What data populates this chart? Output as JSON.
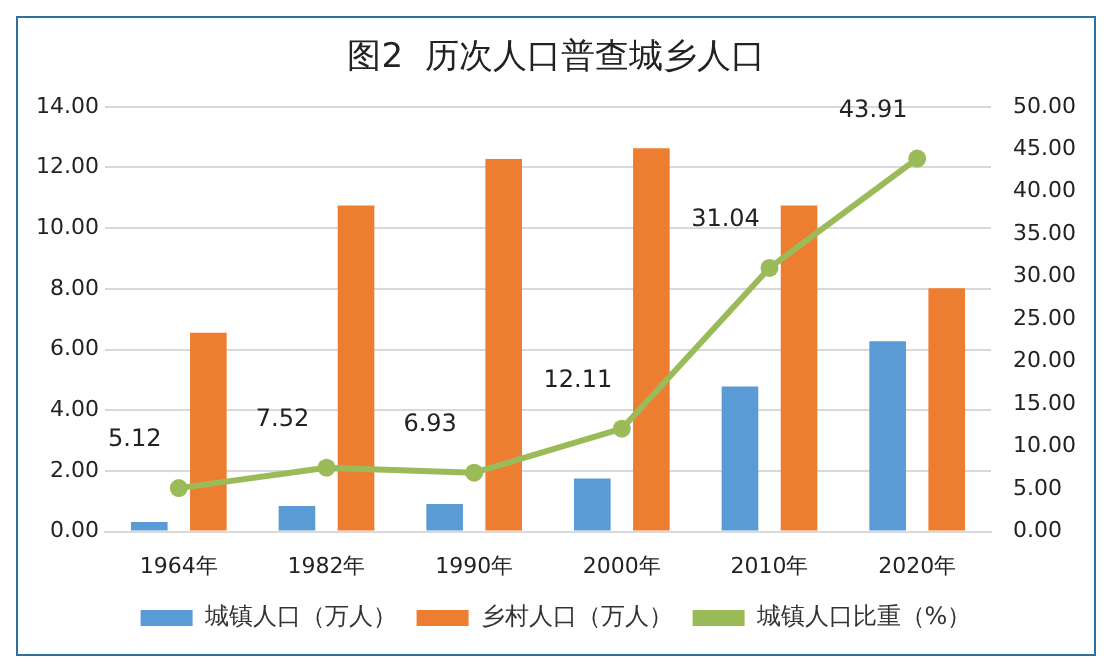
{
  "chart_data": {
    "type": "bar",
    "title": "图2  历次人口普查城乡人口",
    "categories": [
      "1964年",
      "1982年",
      "1990年",
      "2000年",
      "2010年",
      "2020年"
    ],
    "series": [
      {
        "name": "城镇人口（万人）",
        "color": "#5b9bd5",
        "values": [
          0.32,
          0.84,
          0.91,
          1.75,
          4.78,
          6.27
        ]
      },
      {
        "name": "乡村人口（万人）",
        "color": "#ed7d31",
        "values": [
          6.55,
          10.75,
          12.28,
          12.63,
          10.75,
          8.02
        ]
      },
      {
        "name": "城镇人口比重（%）",
        "type": "line",
        "axis": "y2",
        "color": "#9bbb59",
        "marker": "circle",
        "values": [
          5.12,
          7.52,
          6.93,
          12.11,
          31.04,
          43.91
        ],
        "value_labels": [
          "5.12",
          "7.52",
          "6.93",
          "12.11",
          "31.04",
          "43.91"
        ]
      }
    ],
    "ylim": [
      0,
      14
    ],
    "yticks": [
      {
        "value": 0,
        "label": "0.00"
      },
      {
        "value": 2,
        "label": "2.00"
      },
      {
        "value": 4,
        "label": "4.00"
      },
      {
        "value": 6,
        "label": "6.00"
      },
      {
        "value": 8,
        "label": "8.00"
      },
      {
        "value": 10,
        "label": "10.00"
      },
      {
        "value": 12,
        "label": "12.00"
      },
      {
        "value": 14,
        "label": "14.00"
      }
    ],
    "y2lim": [
      0,
      50
    ],
    "y2ticks": [
      {
        "value": 0,
        "label": "0.00"
      },
      {
        "value": 5,
        "label": "5.00"
      },
      {
        "value": 10,
        "label": "10.00"
      },
      {
        "value": 15,
        "label": "15.00"
      },
      {
        "value": 20,
        "label": "20.00"
      },
      {
        "value": 25,
        "label": "25.00"
      },
      {
        "value": 30,
        "label": "30.00"
      },
      {
        "value": 35,
        "label": "35.00"
      },
      {
        "value": 40,
        "label": "40.00"
      },
      {
        "value": 45,
        "label": "45.00"
      },
      {
        "value": 50,
        "label": "50.00"
      }
    ],
    "grid": "y",
    "legend": "bottom"
  }
}
